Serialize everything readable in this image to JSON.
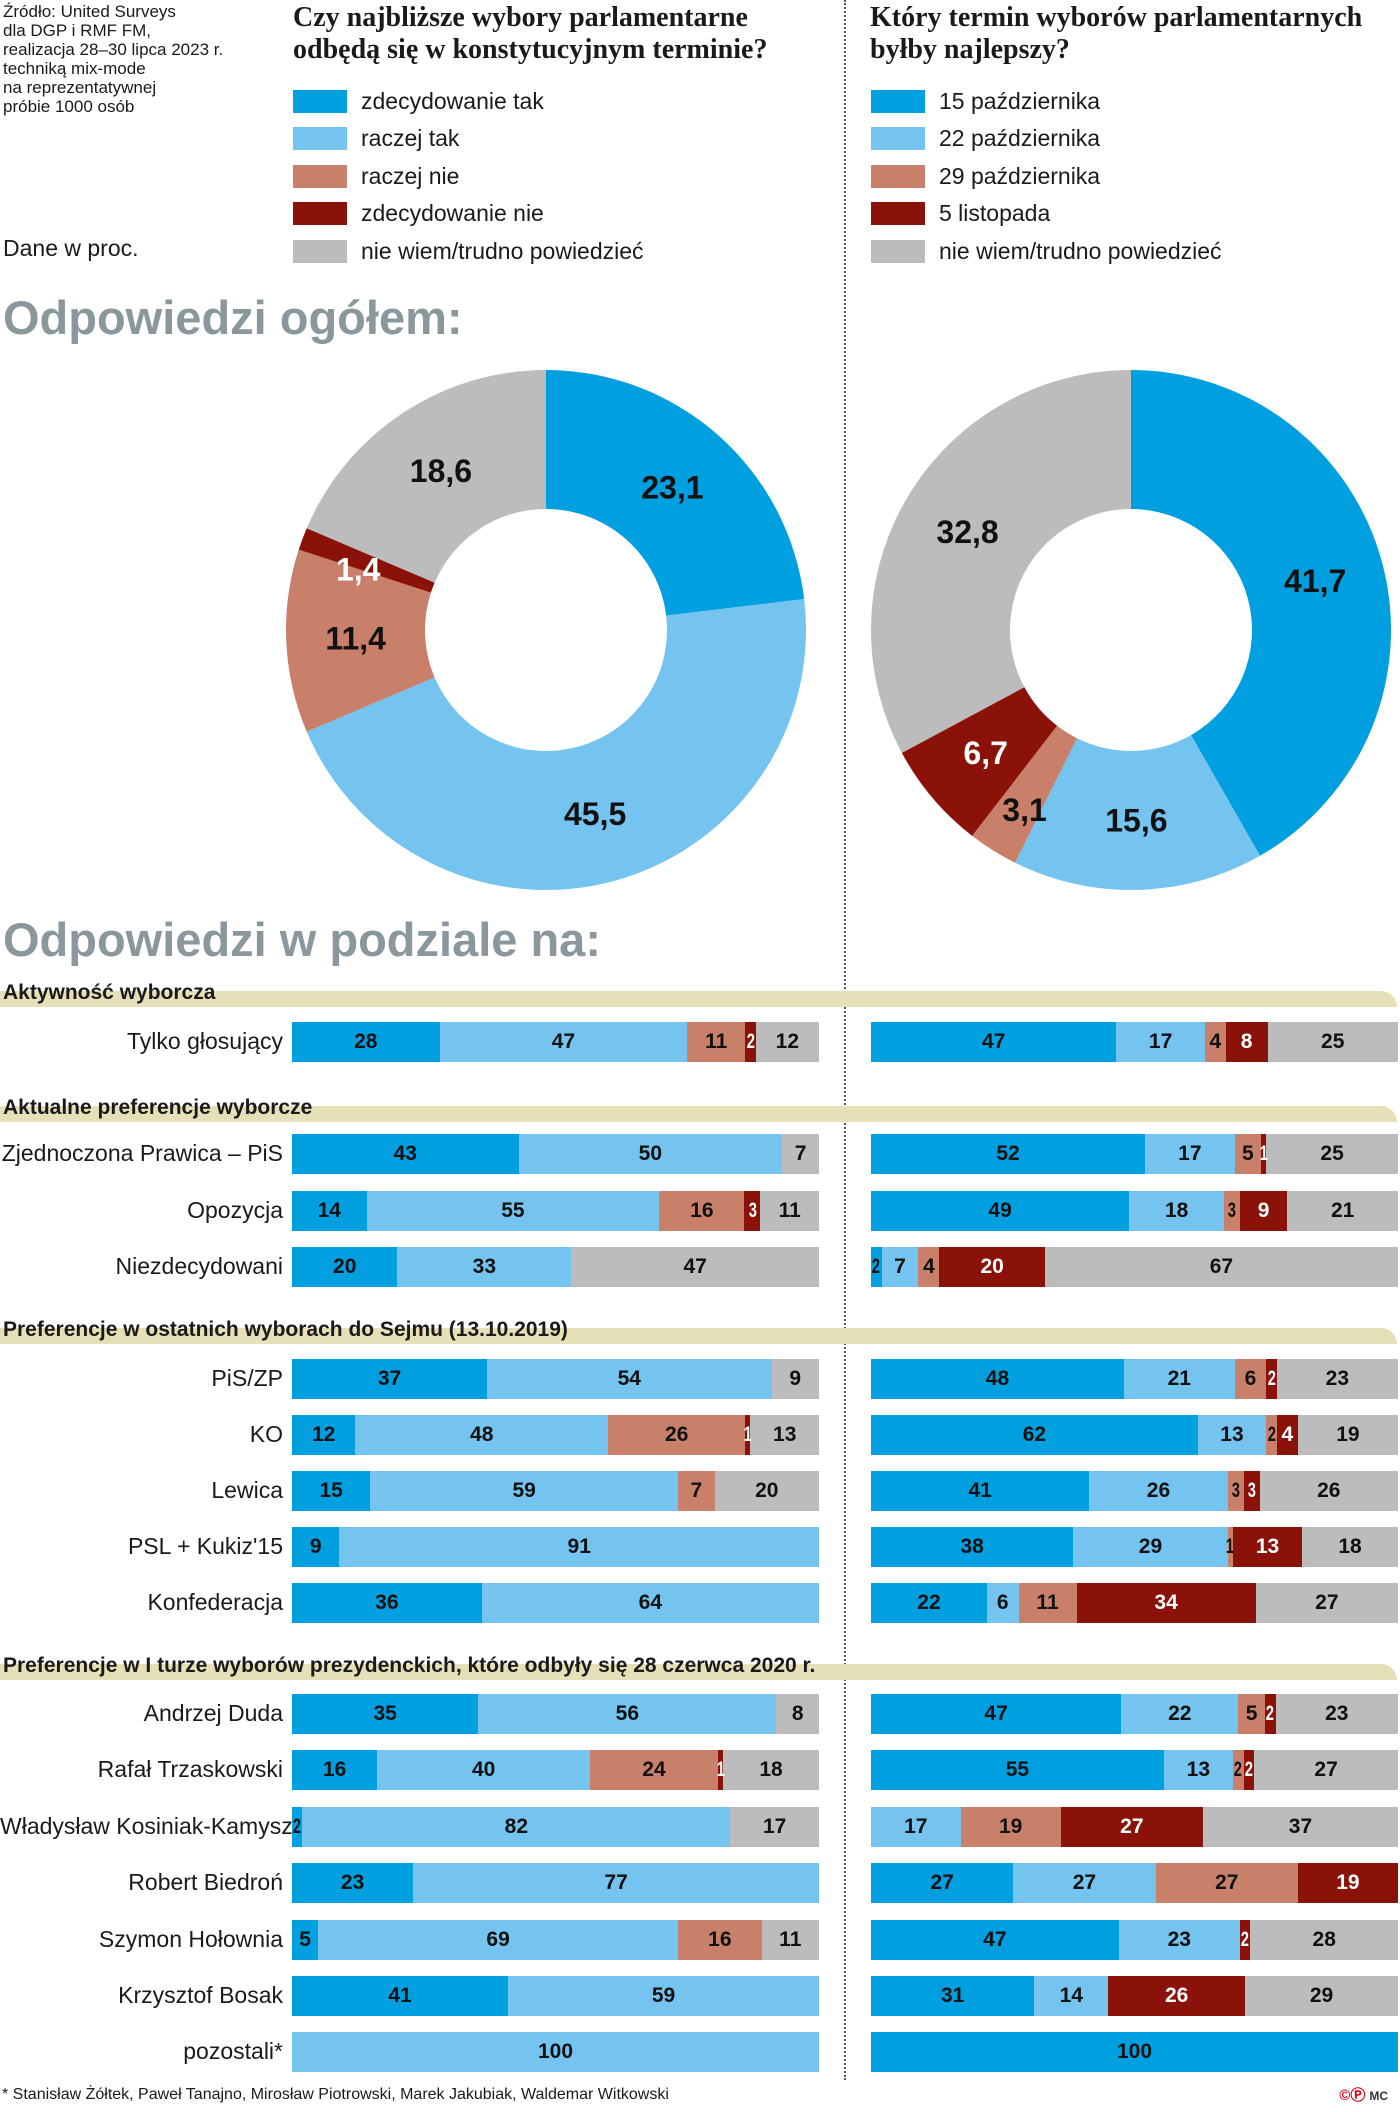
{
  "source": "Źródło: United Surveys\ndla DGP i RMF FM,\nrealizacja 28–30 lipca 2023 r.\ntechniką mix-mode\nna reprezentatywnej\npróbie 1000 osób",
  "unit_note": "Dane w proc.",
  "colors": [
    "#009fe0",
    "#74c4ef",
    "#c8806a",
    "#8b1208",
    "#bcbcbd"
  ],
  "questions": [
    {
      "title": "Czy najbliższe wybory parlamentarne odbędą się w konstytucyjnym terminie?",
      "legend": [
        "zdecydowanie tak",
        "raczej tak",
        "raczej nie",
        "zdecydowanie nie",
        "nie wiem/trudno powiedzieć"
      ]
    },
    {
      "title": "Który termin wyborów parlamentarnych byłby najlepszy?",
      "legend": [
        "15 października",
        "22 października",
        "29 października",
        "5 listopada",
        "nie wiem/trudno powiedzieć"
      ]
    }
  ],
  "overall_heading": "Odpowiedzi ogółem:",
  "breakdown_heading": "Odpowiedzi w podziale na:",
  "chart_data": [
    {
      "type": "pie",
      "variant": "donut",
      "values": [
        23.1,
        45.5,
        11.4,
        1.4,
        18.6
      ],
      "labels": [
        "23,1",
        "45,5",
        "11,4",
        "1,4",
        "18,6"
      ]
    },
    {
      "type": "pie",
      "variant": "donut",
      "values": [
        41.7,
        15.6,
        3.1,
        6.7,
        32.8
      ],
      "labels": [
        "41,7",
        "15,6",
        "3,1",
        "6,7",
        "32,8"
      ]
    },
    {
      "type": "bar",
      "orientation": "horizontal",
      "stacked": true,
      "unit": "%",
      "groups": [
        {
          "title": "Aktywność wyborcza",
          "rows": [
            {
              "label": "Tylko głosujący",
              "left": [
                28,
                47,
                11,
                2,
                12
              ],
              "right": [
                47,
                17,
                4,
                8,
                25
              ]
            }
          ]
        },
        {
          "title": "Aktualne preferencje wyborcze",
          "rows": [
            {
              "label": "Zjednoczona Prawica – PiS",
              "left": [
                43,
                50,
                0,
                0,
                7
              ],
              "right": [
                52,
                17,
                5,
                1,
                25
              ]
            },
            {
              "label": "Opozycja",
              "left": [
                14,
                55,
                16,
                3,
                11
              ],
              "right": [
                49,
                18,
                3,
                9,
                21
              ]
            },
            {
              "label": "Niezdecydowani",
              "left": [
                20,
                33,
                0,
                0,
                47
              ],
              "right": [
                2,
                7,
                4,
                20,
                67
              ]
            }
          ]
        },
        {
          "title": "Preferencje w ostatnich wyborach do Sejmu (13.10.2019)",
          "rows": [
            {
              "label": "PiS/ZP",
              "left": [
                37,
                54,
                0,
                0,
                9
              ],
              "right": [
                48,
                21,
                6,
                2,
                23
              ]
            },
            {
              "label": "KO",
              "left": [
                12,
                48,
                26,
                1,
                13
              ],
              "right": [
                62,
                13,
                2,
                4,
                19
              ]
            },
            {
              "label": "Lewica",
              "left": [
                15,
                59,
                7,
                0,
                20
              ],
              "right": [
                41,
                26,
                3,
                3,
                26
              ]
            },
            {
              "label": "PSL + Kukiz'15",
              "left": [
                9,
                91,
                0,
                0,
                0
              ],
              "right": [
                38,
                29,
                1,
                13,
                18
              ]
            },
            {
              "label": "Konfederacja",
              "left": [
                36,
                64,
                0,
                0,
                0
              ],
              "right": [
                22,
                6,
                11,
                34,
                27
              ]
            }
          ]
        },
        {
          "title": "Preferencje w I turze wyborów prezydenckich, które odbyły się 28 czerwca 2020 r.",
          "rows": [
            {
              "label": "Andrzej Duda",
              "left": [
                35,
                56,
                0,
                0,
                8
              ],
              "right": [
                47,
                22,
                5,
                2,
                23
              ]
            },
            {
              "label": "Rafał Trzaskowski",
              "left": [
                16,
                40,
                24,
                1,
                18
              ],
              "right": [
                55,
                13,
                2,
                2,
                27
              ]
            },
            {
              "label": "Władysław Kosiniak-Kamysz",
              "left": [
                2,
                82,
                0,
                0,
                17
              ],
              "right": [
                0,
                17,
                19,
                27,
                37
              ]
            },
            {
              "label": "Robert Biedroń",
              "left": [
                23,
                77,
                0,
                0,
                0
              ],
              "right": [
                27,
                27,
                27,
                19,
                0
              ]
            },
            {
              "label": "Szymon Hołownia",
              "left": [
                5,
                69,
                16,
                0,
                11
              ],
              "right": [
                47,
                23,
                0,
                2,
                28
              ]
            },
            {
              "label": "Krzysztof Bosak",
              "left": [
                41,
                59,
                0,
                0,
                0
              ],
              "right": [
                31,
                14,
                0,
                26,
                29
              ]
            },
            {
              "label": "pozostali*",
              "left": [
                0,
                100,
                0,
                0,
                0
              ],
              "right": [
                100,
                0,
                0,
                0,
                0
              ]
            }
          ]
        }
      ]
    }
  ],
  "footnote": "* Stanisław Żółtek, Paweł Tanajno, Mirosław Piotrowski, Marek Jakubiak, Waldemar Witkowski",
  "logo": "©Ⓟ",
  "author": "MC"
}
